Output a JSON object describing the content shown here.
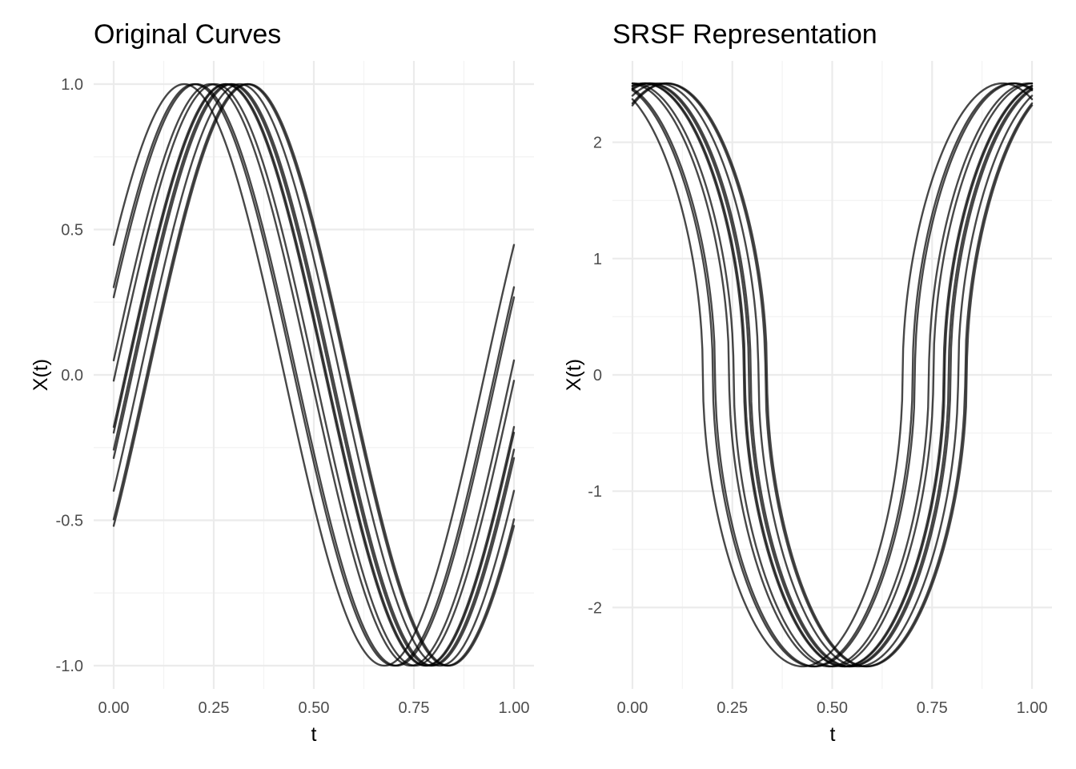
{
  "chart_data": [
    {
      "type": "line",
      "title": "Original Curves",
      "xlabel": "t",
      "ylabel": "X(t)",
      "xlim": [
        -0.05,
        1.05
      ],
      "ylim": [
        -1.08,
        1.08
      ],
      "x_ticks": [
        0,
        0.25,
        0.5,
        0.75,
        1
      ],
      "x_tick_labels": [
        "0.00",
        "0.25",
        "0.50",
        "0.75",
        "1.00"
      ],
      "y_ticks": [
        -1,
        -0.5,
        0,
        0.5,
        1
      ],
      "y_tick_labels": [
        "-1.0",
        "-0.5",
        "0.0",
        "0.5",
        "1.0"
      ],
      "grid": true,
      "line_color": "#000000",
      "line_opacity": 0.72,
      "curve_family": "sin(2*pi*t + phase)",
      "phase_radians": [
        0.4636,
        0.3064,
        0.2702,
        0.05,
        -0.02,
        -0.18,
        -0.2,
        -0.26,
        -0.29,
        -0.41,
        -0.52,
        -0.546
      ]
    },
    {
      "type": "line",
      "title": "SRSF Representation",
      "xlabel": "t",
      "ylabel": "X(t)",
      "xlim": [
        -0.05,
        1.05
      ],
      "ylim": [
        -2.7,
        2.7
      ],
      "x_ticks": [
        0,
        0.25,
        0.5,
        0.75,
        1
      ],
      "x_tick_labels": [
        "0.00",
        "0.25",
        "0.50",
        "0.75",
        "1.00"
      ],
      "y_ticks": [
        -2,
        -1,
        0,
        1,
        2
      ],
      "y_tick_labels": [
        "-2",
        "-1",
        "0",
        "1",
        "2"
      ],
      "grid": true,
      "line_color": "#000000",
      "line_opacity": 0.72,
      "curve_family": "sign(cos(2*pi*t + phase)) * sqrt(2*pi*|cos(2*pi*t + phase)|)",
      "phase_radians": [
        0.4636,
        0.3064,
        0.2702,
        0.05,
        -0.02,
        -0.18,
        -0.2,
        -0.26,
        -0.29,
        -0.41,
        -0.52,
        -0.546
      ]
    }
  ]
}
